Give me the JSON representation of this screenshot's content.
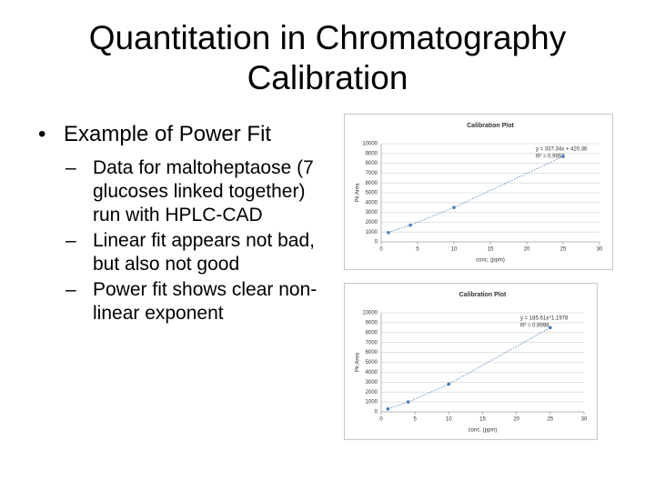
{
  "title": "Quantitation in Chromatography Calibration",
  "bullets": [
    {
      "text": "Example of Power Fit",
      "sub": [
        "Data for maltoheptaose (7 glucoses linked together) run with HPLC-CAD",
        "Linear fit appears not bad, but also not good",
        "Power fit shows clear non-linear exponent"
      ]
    }
  ],
  "chart_data": [
    {
      "type": "scatter",
      "title": "Calibration Plot",
      "x_label": "conc. (ppm)",
      "y_label": "Pk Area",
      "annotations": [
        "y = 337.34x + 420.36",
        "R² = 0.9957"
      ],
      "xlim": [
        0,
        30
      ],
      "xticks": [
        0,
        5,
        10,
        15,
        20,
        25,
        30
      ],
      "ylim": [
        0,
        10000
      ],
      "yticks": [
        0,
        1000,
        2000,
        3000,
        4000,
        5000,
        6000,
        7000,
        8000,
        9000,
        10000
      ],
      "grid": true,
      "series": [
        {
          "name": "Pk Area",
          "color": "#4a7ebb",
          "x": [
            1,
            4,
            10,
            25
          ],
          "values": [
            950,
            1700,
            3500,
            8700
          ]
        }
      ]
    },
    {
      "type": "scatter",
      "title": "Calibration Plot",
      "x_label": "conc. (ppm)",
      "y_label": "Pk Area",
      "annotations": [
        "y = 185.61x^1.1978",
        "R² = 0.9998"
      ],
      "xlim": [
        0,
        30
      ],
      "xticks": [
        0,
        5,
        10,
        15,
        20,
        25,
        30
      ],
      "ylim": [
        0,
        10000
      ],
      "yticks": [
        0,
        1000,
        2000,
        3000,
        4000,
        5000,
        6000,
        7000,
        8000,
        9000,
        10000
      ],
      "grid": true,
      "series": [
        {
          "name": "Pk Area",
          "color": "#4a7ebb",
          "x": [
            1,
            4,
            10,
            25
          ],
          "values": [
            300,
            1000,
            2800,
            8500
          ]
        }
      ]
    }
  ]
}
